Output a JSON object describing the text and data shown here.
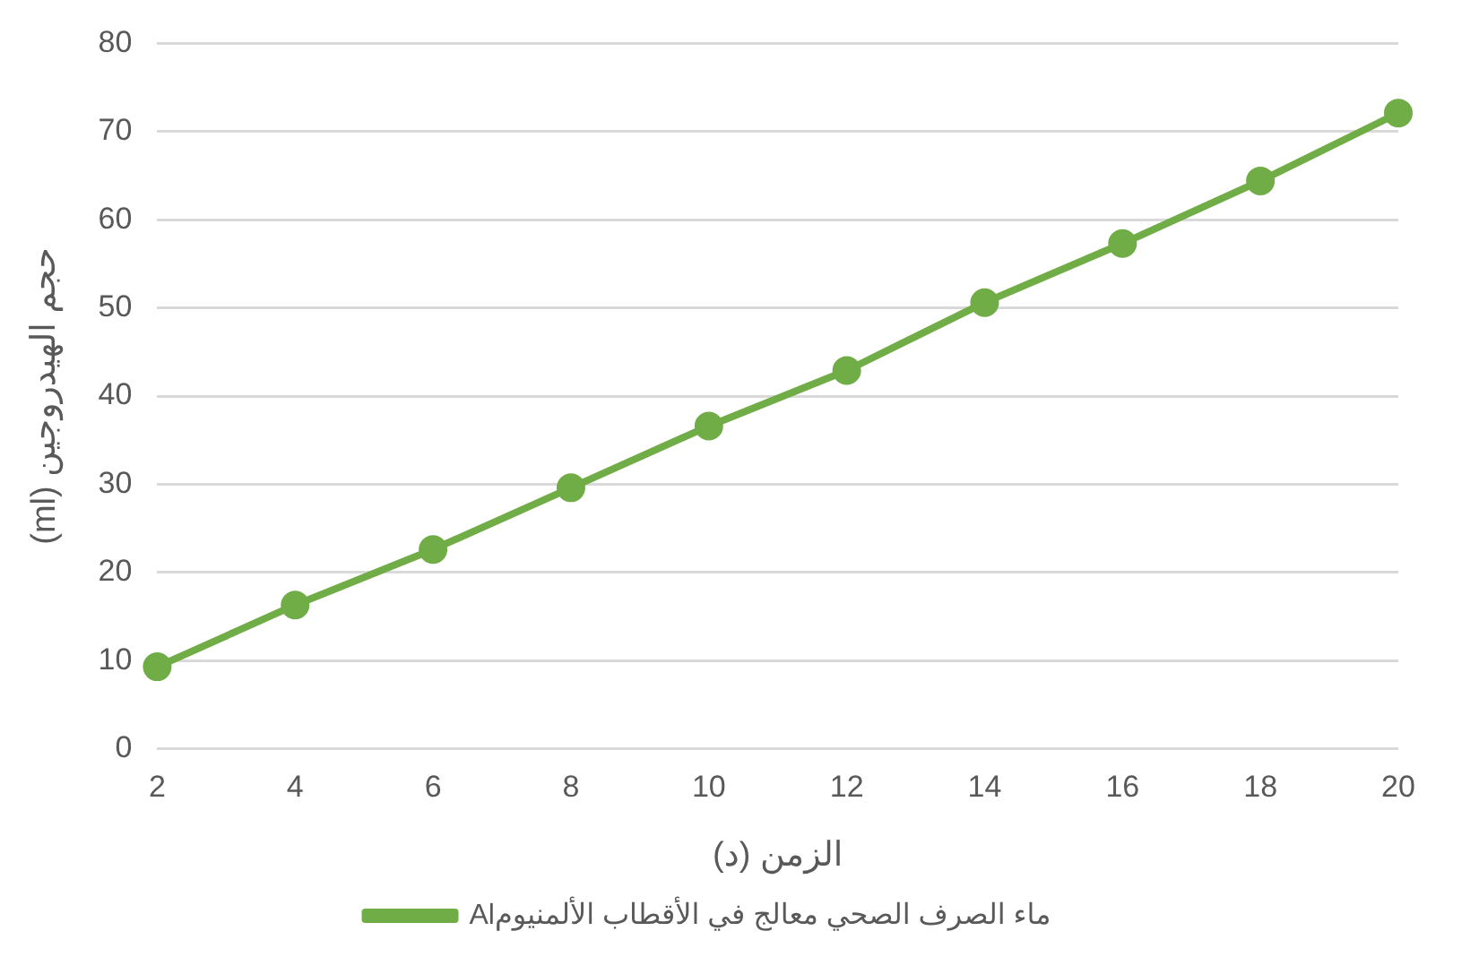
{
  "chart_data": {
    "type": "line",
    "xlabel": "الزمن (د)",
    "ylabel": "حجم الهيدروجين (ml)",
    "categories": [
      "2",
      "4",
      "6",
      "8",
      "10",
      "12",
      "14",
      "16",
      "18",
      "20"
    ],
    "series": [
      {
        "name": "ماء الصرف الصحي معالج في الأقطاب الألمنيومAl",
        "color": "#70ad47",
        "values": [
          9.3,
          16.3,
          22.6,
          29.6,
          36.6,
          42.9,
          50.6,
          57.3,
          64.4,
          72.1
        ]
      }
    ],
    "ylim": [
      0,
      80
    ],
    "yticks": [
      0,
      10,
      20,
      30,
      40,
      50,
      60,
      70,
      80
    ],
    "grid": "y",
    "legend": "bottom",
    "marker": "circle",
    "line_style": "solid"
  }
}
